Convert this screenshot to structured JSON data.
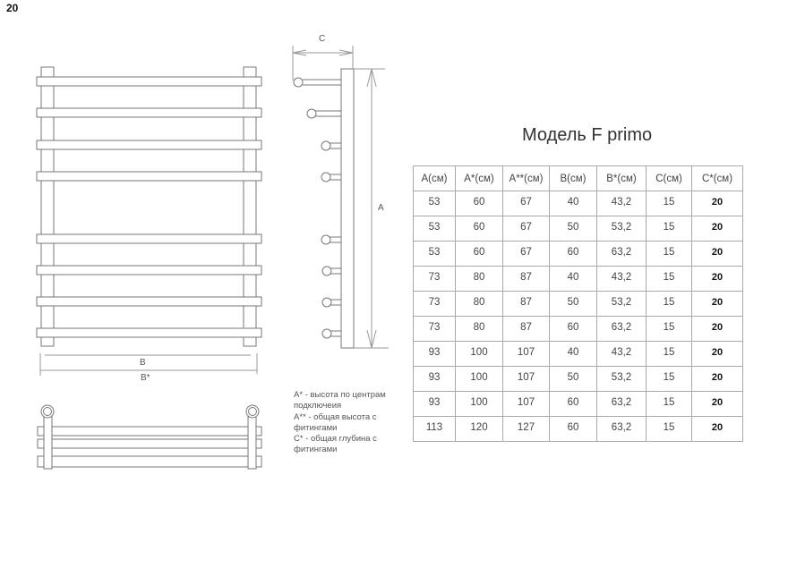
{
  "page_number": "20",
  "title": "Модель F primo",
  "drawing_labels": {
    "a": "A",
    "b": "B",
    "b_star": "B*",
    "c": "C"
  },
  "legend": [
    "A* - высота по центрам подключеия",
    "A** - общая высота с фитингами",
    "C* - общая глубина с фитингами"
  ],
  "table": {
    "headers": [
      "A(см)",
      "A*(см)",
      "A**(см)",
      "B(см)",
      "B*(см)",
      "C(см)",
      "C*(см)"
    ],
    "rows": [
      [
        "53",
        "60",
        "67",
        "40",
        "43,2",
        "15",
        "20"
      ],
      [
        "53",
        "60",
        "67",
        "50",
        "53,2",
        "15",
        "20"
      ],
      [
        "53",
        "60",
        "67",
        "60",
        "63,2",
        "15",
        "20"
      ],
      [
        "73",
        "80",
        "87",
        "40",
        "43,2",
        "15",
        "20"
      ],
      [
        "73",
        "80",
        "87",
        "50",
        "53,2",
        "15",
        "20"
      ],
      [
        "73",
        "80",
        "87",
        "60",
        "63,2",
        "15",
        "20"
      ],
      [
        "93",
        "100",
        "107",
        "40",
        "43,2",
        "15",
        "20"
      ],
      [
        "93",
        "100",
        "107",
        "50",
        "53,2",
        "15",
        "20"
      ],
      [
        "93",
        "100",
        "107",
        "60",
        "63,2",
        "15",
        "20"
      ],
      [
        "113",
        "120",
        "127",
        "60",
        "63,2",
        "15",
        "20"
      ]
    ]
  }
}
